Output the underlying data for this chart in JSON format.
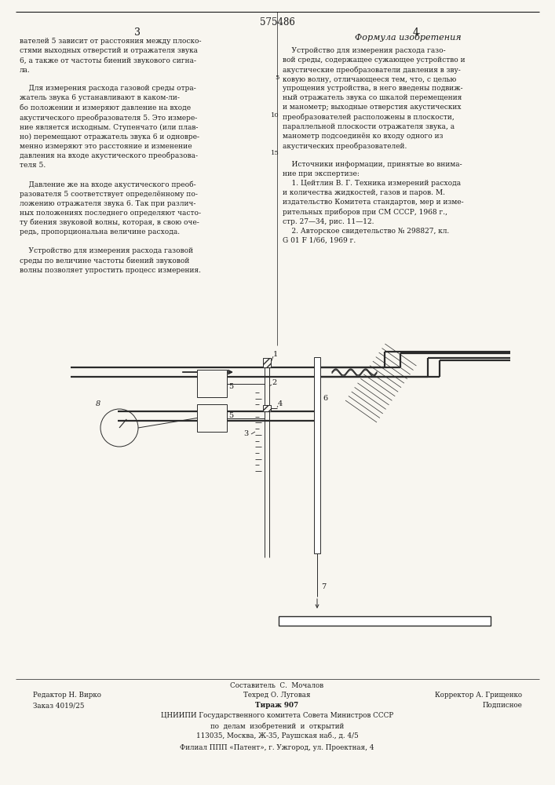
{
  "patent_number": "575486",
  "page_left": "3",
  "page_right": "4",
  "bg_color": "#f8f6f0",
  "text_color": "#1a1a1a",
  "formula_title": "Формула изобретения",
  "footer_editor": "Редактор Н. Вирко",
  "footer_composer": "Составитель  С.  Мочалов",
  "footer_techred": "Техред О. Луговая",
  "footer_corrector": "Корректор А. Грищенко",
  "footer_order": "Заказ 4019/25",
  "footer_edition": "Тираж 907",
  "footer_subscription": "Подписное",
  "footer_org": "ЦНИИПИ Государственного комитета Совета Министров СССР",
  "footer_dept": "по  делам  изобретений  и  открытий",
  "footer_address": "113035, Москва, Ж-35, Раушская наб., д. 4/5",
  "footer_branch": "Филиал ППП «Патент», г. Ужгород, ул. Проектная, 4"
}
